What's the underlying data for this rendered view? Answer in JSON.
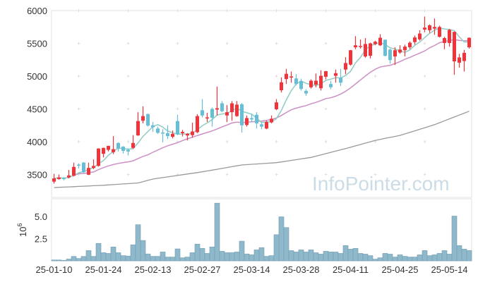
{
  "chart_data": {
    "type": "candlestick",
    "watermark": "InfoPointer.com",
    "price_axis": {
      "ticks": [
        "6000",
        "5500",
        "5000",
        "4500",
        "4000",
        "3500"
      ],
      "tick_values": [
        6000,
        5500,
        5000,
        4500,
        4000,
        3500
      ],
      "ylim": [
        3150,
        6000
      ]
    },
    "volume_axis": {
      "label": "10",
      "label_exp": "6",
      "ticks": [
        "5.0",
        "2.5"
      ],
      "tick_values": [
        5.0,
        2.5
      ],
      "ylim": [
        0,
        7
      ]
    },
    "x_labels": [
      {
        "label": "25-01-10",
        "index": 0
      },
      {
        "label": "25-01-24",
        "index": 10
      },
      {
        "label": "25-02-13",
        "index": 20
      },
      {
        "label": "25-02-27",
        "index": 30
      },
      {
        "label": "25-03-14",
        "index": 40
      },
      {
        "label": "25-03-28",
        "index": 50
      },
      {
        "label": "25-04-11",
        "index": 60
      },
      {
        "label": "25-04-25",
        "index": 70
      },
      {
        "label": "25-05-14",
        "index": 80
      }
    ],
    "colors": {
      "up": "#f0343c",
      "down": "#67bfd6",
      "ma5": "#8ecdc4",
      "ma20": "#cc8fc6",
      "ma_long": "#999999",
      "volume": "#8fb8cb"
    },
    "ohlc_columns": [
      "open",
      "close",
      "high",
      "low"
    ],
    "ohlc": [
      [
        3390,
        3440,
        3510,
        3360
      ],
      [
        3430,
        3455,
        3500,
        3420
      ],
      [
        3445,
        3435,
        3460,
        3410
      ],
      [
        3455,
        3485,
        3570,
        3440
      ],
      [
        3480,
        3615,
        3680,
        3470
      ],
      [
        3650,
        3645,
        3670,
        3590
      ],
      [
        3680,
        3535,
        3690,
        3520
      ],
      [
        3495,
        3600,
        3680,
        3490
      ],
      [
        3600,
        3630,
        3730,
        3580
      ],
      [
        3630,
        3895,
        3900,
        3620
      ],
      [
        3815,
        3905,
        3910,
        3760
      ],
      [
        3875,
        3935,
        3940,
        3850
      ],
      [
        3840,
        3885,
        4085,
        3810
      ],
      [
        3980,
        3895,
        3990,
        3850
      ],
      [
        3925,
        3860,
        3930,
        3820
      ],
      [
        3875,
        3850,
        3900,
        3790
      ],
      [
        3905,
        3980,
        4100,
        3890
      ],
      [
        4095,
        4315,
        4450,
        4090
      ],
      [
        4320,
        4390,
        4540,
        4280
      ],
      [
        4420,
        4245,
        4430,
        4230
      ],
      [
        4250,
        4220,
        4300,
        4150
      ],
      [
        4200,
        4135,
        4230,
        4120
      ],
      [
        4140,
        4125,
        4190,
        3990
      ],
      [
        4130,
        4085,
        4250,
        4040
      ],
      [
        4075,
        4120,
        4170,
        4050
      ],
      [
        4315,
        4110,
        4410,
        4100
      ],
      [
        4130,
        4150,
        4180,
        4080
      ],
      [
        4095,
        4120,
        4130,
        4020
      ],
      [
        4100,
        4155,
        4290,
        4060
      ],
      [
        4145,
        4390,
        4420,
        4130
      ],
      [
        4480,
        4400,
        4650,
        4370
      ],
      [
        4355,
        4370,
        4440,
        4300
      ],
      [
        4500,
        4365,
        4520,
        4230
      ],
      [
        4490,
        4510,
        4840,
        4400
      ],
      [
        4585,
        4465,
        4620,
        4450
      ],
      [
        4400,
        4450,
        4560,
        4300
      ],
      [
        4450,
        4585,
        4620,
        4320
      ],
      [
        4390,
        4565,
        4620,
        4380
      ],
      [
        4570,
        4250,
        4590,
        4140
      ],
      [
        4255,
        4360,
        4400,
        4230
      ],
      [
        4360,
        4340,
        4420,
        4300
      ],
      [
        4410,
        4280,
        4450,
        4200
      ],
      [
        4265,
        4230,
        4290,
        4190
      ],
      [
        4200,
        4300,
        4320,
        4190
      ],
      [
        4295,
        4350,
        4400,
        4280
      ],
      [
        4495,
        4600,
        4650,
        4480
      ],
      [
        4785,
        4905,
        4980,
        4750
      ],
      [
        4955,
        5035,
        5110,
        4880
      ],
      [
        4980,
        4995,
        5070,
        4900
      ],
      [
        4965,
        4880,
        5030,
        4860
      ],
      [
        4925,
        4805,
        4960,
        4780
      ],
      [
        4775,
        4735,
        4800,
        4700
      ],
      [
        4830,
        4930,
        4950,
        4810
      ],
      [
        4870,
        4930,
        5040,
        4830
      ],
      [
        4815,
        5005,
        5090,
        4780
      ],
      [
        4990,
        5075,
        5080,
        4950
      ],
      [
        4880,
        4830,
        4930,
        4800
      ],
      [
        5005,
        5045,
        5100,
        4900
      ],
      [
        4975,
        4900,
        5110,
        4850
      ],
      [
        5100,
        5200,
        5290,
        5030
      ],
      [
        5175,
        5395,
        5400,
        5160
      ],
      [
        5440,
        5470,
        5610,
        5410
      ],
      [
        5450,
        5460,
        5560,
        5420
      ],
      [
        5300,
        5490,
        5580,
        5280
      ],
      [
        5310,
        5500,
        5510,
        5270
      ],
      [
        5490,
        5525,
        5540,
        5470
      ],
      [
        5470,
        5585,
        5640,
        5460
      ],
      [
        5555,
        5310,
        5560,
        5300
      ],
      [
        5405,
        5245,
        5420,
        5190
      ],
      [
        5300,
        5395,
        5440,
        5170
      ],
      [
        5360,
        5405,
        5470,
        5340
      ],
      [
        5395,
        5450,
        5480,
        5300
      ],
      [
        5440,
        5510,
        5530,
        5410
      ],
      [
        5520,
        5590,
        5620,
        5480
      ],
      [
        5560,
        5650,
        5700,
        5540
      ],
      [
        5710,
        5740,
        5910,
        5670
      ],
      [
        5700,
        5775,
        5790,
        5660
      ],
      [
        5725,
        5750,
        5880,
        5630
      ],
      [
        5600,
        5750,
        5770,
        5590
      ],
      [
        5505,
        5580,
        5600,
        5410
      ],
      [
        5505,
        5705,
        5720,
        5450
      ],
      [
        5225,
        5675,
        5680,
        5020
      ],
      [
        5205,
        5285,
        5340,
        5130
      ],
      [
        5230,
        5355,
        5400,
        5070
      ],
      [
        5440,
        5585,
        5590,
        5420
      ]
    ],
    "volume_millions": [
      0.1,
      0.1,
      0.05,
      0.2,
      0.5,
      0.27,
      0.5,
      1.16,
      0.5,
      1.97,
      0.92,
      0.84,
      1.57,
      0.92,
      0.59,
      0.54,
      1.81,
      4.08,
      2.3,
      0.78,
      0.51,
      0.51,
      1.0,
      0.43,
      0.43,
      1.35,
      0.35,
      0.43,
      0.92,
      1.89,
      1.41,
      0.84,
      1.57,
      6.51,
      1.08,
      0.92,
      0.92,
      1.0,
      2.22,
      0.78,
      0.68,
      1.24,
      1.49,
      0.51,
      0.59,
      2.95,
      4.97,
      3.76,
      1.16,
      1.0,
      1.24,
      1.0,
      1.24,
      0.92,
      0.76,
      1.08,
      1.0,
      1.0,
      0.84,
      1.73,
      1.32,
      1.41,
      0.84,
      0.76,
      0.59,
      0.19,
      0.35,
      0.84,
      0.76,
      0.43,
      0.68,
      0.51,
      0.43,
      0.43,
      0.68,
      1.16,
      0.59,
      0.68,
      0.84,
      1.16,
      0.76,
      5.05,
      1.73,
      1.32,
      1.16
    ],
    "moving_averages": {
      "short_period": 5,
      "mid_period": 20
    },
    "ma_long_knots": [
      [
        0,
        3300
      ],
      [
        10,
        3335
      ],
      [
        17,
        3370
      ],
      [
        20,
        3430
      ],
      [
        30,
        3540
      ],
      [
        38,
        3645
      ],
      [
        45,
        3680
      ],
      [
        52,
        3760
      ],
      [
        60,
        3915
      ],
      [
        65,
        4020
      ],
      [
        70,
        4095
      ],
      [
        77,
        4260
      ],
      [
        84,
        4465
      ]
    ]
  }
}
